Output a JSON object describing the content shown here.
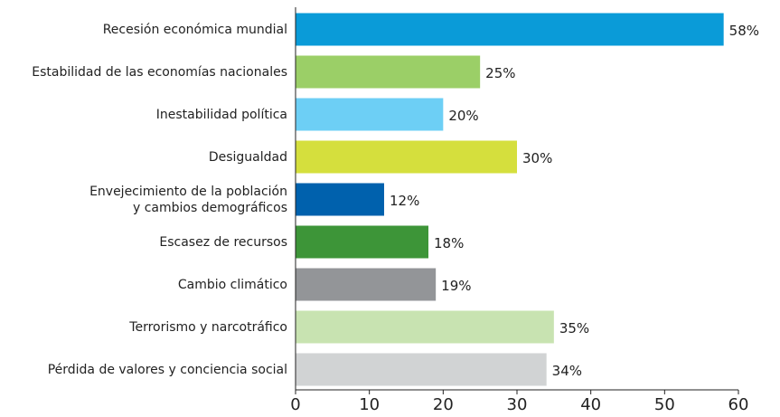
{
  "chart_data": {
    "type": "barh",
    "categories": [
      "Recesión económica mundial",
      "Estabilidad de las economías nacionales",
      "Inestabilidad política",
      "Desigualdad",
      "Envejecimiento de la población\ny cambios demográficos",
      "Escasez de recursos",
      "Cambio climático",
      "Terrorismo y narcotráfico",
      "Pérdida de valores y conciencia social"
    ],
    "values": [
      58,
      25,
      20,
      30,
      12,
      18,
      19,
      35,
      34
    ],
    "value_labels": [
      "58%",
      "25%",
      "20%",
      "30%",
      "12%",
      "18%",
      "19%",
      "35%",
      "34%"
    ],
    "colors": [
      "#0a9bd8",
      "#9bcf67",
      "#6dcff5",
      "#d5df3d",
      "#0061ad",
      "#3d9538",
      "#939598",
      "#c8e3b1",
      "#d1d3d4"
    ],
    "xlim": [
      0,
      60
    ],
    "xticks": [
      0,
      10,
      20,
      30,
      40,
      50,
      60
    ]
  }
}
